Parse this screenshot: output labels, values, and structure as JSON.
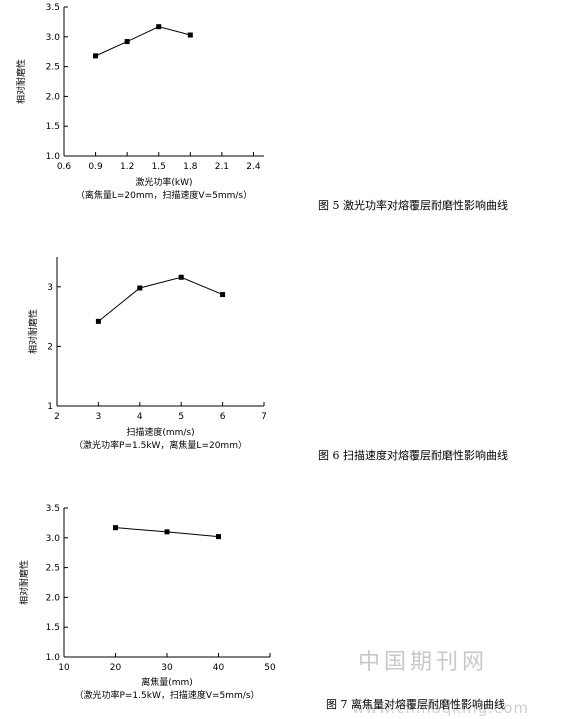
{
  "chart_data": [
    {
      "type": "line",
      "x": [
        0.9,
        1.2,
        1.5,
        1.8
      ],
      "values": [
        2.68,
        2.92,
        3.17,
        3.03
      ],
      "xlim": [
        0.6,
        2.5
      ],
      "ylim": [
        1.0,
        3.5
      ],
      "xticks": [
        "0.6",
        "0.9",
        "1.2",
        "1.5",
        "1.8",
        "2.1",
        "2.4"
      ],
      "yticks": [
        "1.0",
        "1.5",
        "2.0",
        "2.5",
        "3.0",
        "3.5"
      ],
      "xlabel": "激光功率(kW)",
      "note": "（离焦量L=20mm，扫描速度V=5mm/s）",
      "ylabel": "相对耐磨性",
      "caption": "图 5  激光功率对熔覆层耐磨性影响曲线"
    },
    {
      "type": "line",
      "x": [
        3,
        4,
        5,
        6
      ],
      "values": [
        2.42,
        2.98,
        3.16,
        2.87
      ],
      "xlim": [
        2,
        7
      ],
      "ylim": [
        1,
        3.5
      ],
      "xticks": [
        "2",
        "3",
        "4",
        "5",
        "6",
        "7"
      ],
      "yticks": [
        "1",
        "2",
        "3"
      ],
      "xlabel": "扫描速度(mm/s)",
      "note": "（激光功率P=1.5kW，离焦量L=20mm）",
      "ylabel": "相对耐磨性",
      "caption": "图 6  扫描速度对熔覆层耐磨性影响曲线"
    },
    {
      "type": "line",
      "x": [
        20,
        30,
        40
      ],
      "values": [
        3.17,
        3.1,
        3.02
      ],
      "xlim": [
        10,
        50
      ],
      "ylim": [
        1.0,
        3.5
      ],
      "xticks": [
        "10",
        "20",
        "30",
        "40",
        "50"
      ],
      "yticks": [
        "1.0",
        "1.5",
        "2.0",
        "2.5",
        "3.0",
        "3.5"
      ],
      "xlabel": "离焦量(mm)",
      "note": "（激光功率P=1.5kW，扫描速度V=5mm/s）",
      "ylabel": "相对耐磨性",
      "caption": "图 7  离焦量对熔覆层耐磨性影响曲线"
    }
  ],
  "watermark": {
    "text": "中国期刊网",
    "url": "www.chinaqking.com"
  },
  "colors": {
    "line": "#000000",
    "watermark": "#c8c8c8"
  }
}
